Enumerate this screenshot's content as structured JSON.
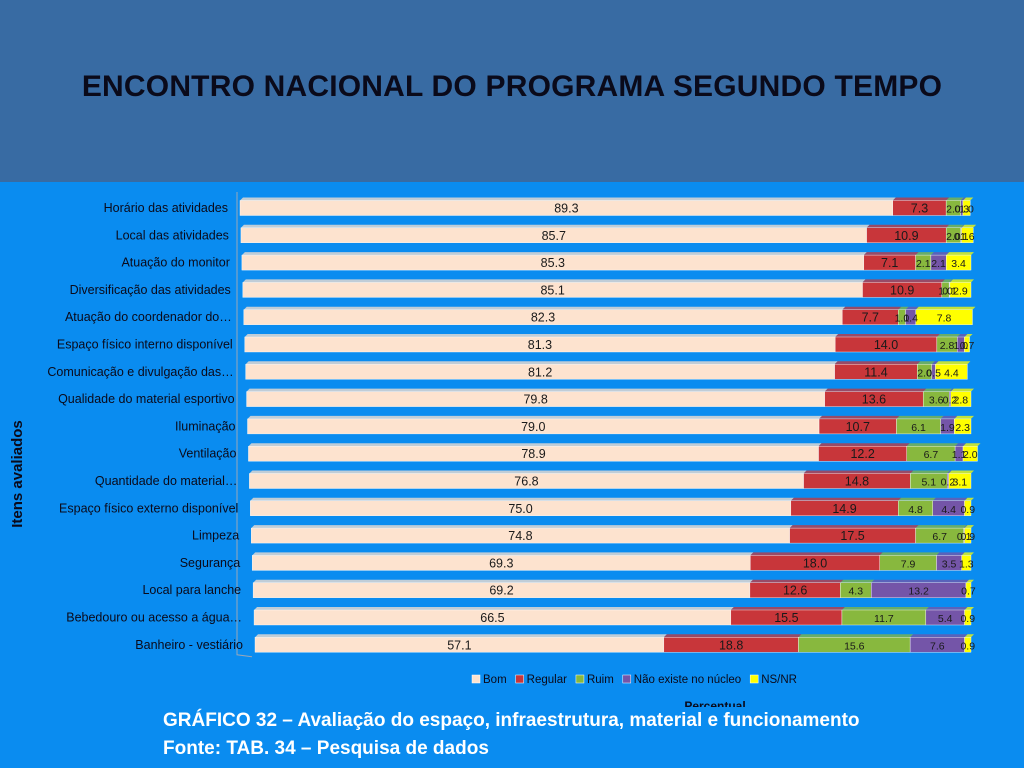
{
  "slide": {
    "title": "ENCONTRO NACIONAL DO PROGRAMA SEGUNDO TEMPO",
    "caption_line1": "GRÁFICO 32 – Avaliação do espaço, infraestrutura, material e funcionamento",
    "caption_line2": "Fonte: TAB. 34 – Pesquisa de dados"
  },
  "chart_data": {
    "type": "bar",
    "orientation": "horizontal",
    "stacked": true,
    "ylabel": "Itens avaliados",
    "xlabel": "Percentual",
    "legend_position": "bottom",
    "categories": [
      "Horário das atividades",
      "Local das atividades",
      "Atuação do monitor",
      "Diversificação das atividades",
      "Atuação do coordenador do…",
      "Espaço físico interno disponível",
      "Comunicação e divulgação das…",
      "Qualidade do material esportivo",
      "Iluminação",
      "Ventilação",
      "Quantidade do material…",
      "Espaço físico externo disponível",
      "Limpeza",
      "Segurança",
      "Local para lanche",
      "Bebedouro ou acesso a água…",
      "Banheiro - vestiário"
    ],
    "series": [
      {
        "name": "Bom",
        "color": "#fde3cf",
        "values": [
          89.3,
          85.7,
          85.3,
          85.1,
          82.3,
          81.3,
          81.2,
          79.8,
          79.0,
          78.9,
          76.8,
          75.0,
          74.8,
          69.3,
          69.2,
          66.5,
          57.1
        ]
      },
      {
        "name": "Regular",
        "color": "#c8363a",
        "values": [
          7.3,
          10.9,
          7.1,
          10.9,
          7.7,
          14.0,
          11.4,
          13.6,
          10.7,
          12.2,
          14.8,
          14.9,
          17.5,
          18.0,
          12.6,
          15.5,
          18.8
        ]
      },
      {
        "name": "Ruim",
        "color": "#88b83e",
        "values": [
          2.0,
          2.0,
          2.1,
          1.0,
          1.0,
          2.8,
          2.0,
          3.6,
          6.1,
          6.7,
          5.1,
          4.8,
          6.7,
          7.9,
          4.3,
          11.7,
          15.6
        ]
      },
      {
        "name": "Não existe no núcleo",
        "color": "#7455a8",
        "values": [
          0.3,
          0.1,
          2.1,
          0.1,
          1.4,
          1.0,
          0.5,
          0.2,
          1.9,
          1.1,
          0.2,
          4.4,
          0.1,
          3.5,
          13.2,
          5.4,
          7.6
        ]
      },
      {
        "name": "NS/NR",
        "color": "#ffff00",
        "values": [
          1.0,
          1.6,
          3.4,
          2.9,
          7.8,
          0.7,
          4.4,
          2.8,
          2.3,
          2.0,
          3.1,
          0.9,
          0.9,
          1.3,
          0.7,
          0.9,
          0.9
        ]
      }
    ]
  }
}
